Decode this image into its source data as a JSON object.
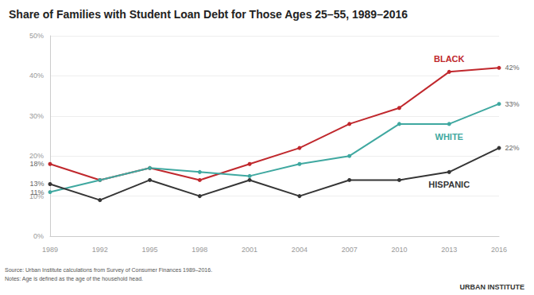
{
  "chart_data": {
    "type": "line",
    "title": "Share of Families with Student Loan Debt for Those Ages 25–55, 1989–2016",
    "annotations": [
      "Source: Urban Institute calculations from Survey of Consumer Finances 1989–2016.",
      "Notes: Age is defined as the age of the household head.",
      "URBAN INSTITUTE"
    ],
    "categories": [
      "1989",
      "1992",
      "1995",
      "1998",
      "2001",
      "2004",
      "2007",
      "2010",
      "2013",
      "2016"
    ],
    "series": [
      {
        "name": "BLACK",
        "color": "#c0282d",
        "values": [
          18,
          14,
          17,
          14,
          18,
          22,
          28,
          32,
          41,
          42
        ],
        "value_labels": [
          "18%",
          null,
          null,
          null,
          null,
          null,
          null,
          null,
          null,
          "42%"
        ]
      },
      {
        "name": "WHITE",
        "color": "#3fa8a0",
        "values": [
          11,
          14,
          17,
          16,
          15,
          18,
          20,
          28,
          28,
          33
        ],
        "value_labels": [
          "11%",
          null,
          null,
          null,
          null,
          null,
          null,
          null,
          null,
          "33%"
        ]
      },
      {
        "name": "HISPANIC",
        "color": "#353535",
        "values": [
          13,
          9,
          14,
          10,
          14,
          10,
          14,
          14,
          16,
          22
        ],
        "value_labels": [
          "13%",
          null,
          null,
          null,
          null,
          null,
          null,
          null,
          null,
          "22%"
        ]
      }
    ],
    "ylim": [
      0,
      50
    ],
    "yticks": [
      {
        "value": 0,
        "label": "0%"
      },
      {
        "value": 10,
        "label": "10%"
      },
      {
        "value": 20,
        "label": "20%"
      },
      {
        "value": 30,
        "label": "30%"
      },
      {
        "value": 40,
        "label": "40%"
      },
      {
        "value": 50,
        "label": "50%"
      }
    ],
    "grid": true,
    "data_labels": true
  }
}
